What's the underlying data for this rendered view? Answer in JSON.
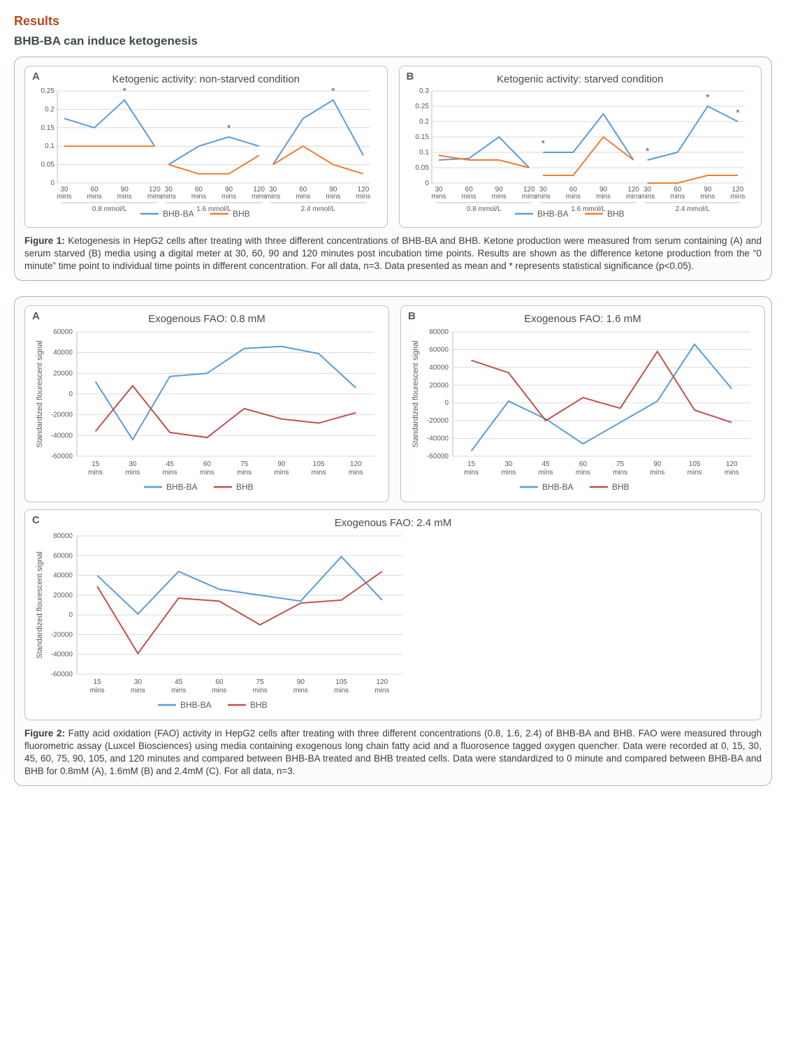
{
  "headings": {
    "results": "Results",
    "sub1": "BHB-BA can induce ketogenesis"
  },
  "colors": {
    "series_bhbba": "#5b9bd5",
    "series_bhb": "#ed7d31",
    "series_bhb_dark": "#c0504d",
    "grid": "#d9d9d9",
    "axis": "#bfbfbf",
    "text": "#595959",
    "box_border": "#a6b5bd"
  },
  "figure1": {
    "panelA": {
      "letter": "A",
      "title": "Ketogenic activity: non-starved condition",
      "ymin": 0,
      "ymax": 0.25,
      "ystep": 0.05,
      "groups": [
        "0.8 mmol/L",
        "1.6 mmol/L",
        "2.4  mmol/L"
      ],
      "x_labels": [
        "30",
        "60",
        "90",
        "120"
      ],
      "x_sub": "mins",
      "series": [
        {
          "name": "BHB-BA",
          "color": "#5b9bd5",
          "values": [
            [
              0.175,
              0.15,
              0.225,
              0.1
            ],
            [
              0.05,
              0.1,
              0.125,
              0.1
            ],
            [
              0.05,
              0.175,
              0.225,
              0.075
            ]
          ]
        },
        {
          "name": "BHB",
          "color": "#ed7d31",
          "values": [
            [
              0.1,
              0.1,
              0.1,
              0.1
            ],
            [
              0.05,
              0.025,
              0.025,
              0.075
            ],
            [
              0.05,
              0.1,
              0.05,
              0.025
            ]
          ]
        }
      ],
      "stars": [
        {
          "group": 0,
          "idx": 2
        },
        {
          "group": 1,
          "idx": 2
        },
        {
          "group": 2,
          "idx": 2
        }
      ]
    },
    "panelB": {
      "letter": "B",
      "title": "Ketogenic activity: starved condition",
      "ymin": 0,
      "ymax": 0.3,
      "ystep": 0.05,
      "groups": [
        "0.8 mmol/L",
        "1.6 mmol/L",
        "2.4  mmol/L"
      ],
      "x_labels": [
        "30",
        "60",
        "90",
        "120"
      ],
      "x_sub": "mins",
      "series": [
        {
          "name": "BHB-BA",
          "color": "#5b9bd5",
          "values": [
            [
              0.075,
              0.08,
              0.15,
              0.05
            ],
            [
              0.1,
              0.1,
              0.225,
              0.075
            ],
            [
              0.075,
              0.1,
              0.25,
              0.2
            ]
          ]
        },
        {
          "name": "BHB",
          "color": "#ed7d31",
          "values": [
            [
              0.09,
              0.075,
              0.075,
              0.05
            ],
            [
              0.025,
              0.025,
              0.15,
              0.075
            ],
            [
              0.0,
              0.0,
              0.025,
              0.025
            ]
          ]
        }
      ],
      "stars": [
        {
          "group": 1,
          "idx": 0
        },
        {
          "group": 2,
          "idx": 0
        },
        {
          "group": 2,
          "idx": 2
        },
        {
          "group": 2,
          "idx": 3
        }
      ]
    },
    "legend": [
      "BHB-BA",
      "BHB"
    ],
    "caption_label": "Figure 1:",
    "caption_text": " Ketogenesis in HepG2 cells after treating with three different concentrations of BHB-BA and BHB. Ketone production were measured from serum containing (A) and serum starved (B) media using a digital meter at 30, 60, 90 and 120 minutes post incubation time points. Results are shown as the difference ketone production from the “0 minute” time point to individual time points in different concentration. For all data, n=3. Data presented as mean and * represents statistical significance (p<0.05)."
  },
  "figure2": {
    "x_labels": [
      "15",
      "30",
      "45",
      "60",
      "75",
      "90",
      "105",
      "120"
    ],
    "x_sub": "mins",
    "ylabel": "Standardized flourescent signal",
    "legend": [
      "BHB-BA",
      "BHB"
    ],
    "panelA": {
      "letter": "A",
      "title": "Exogenous FAO: 0.8 mM",
      "ymin": -60000,
      "ymax": 60000,
      "ystep": 20000,
      "series": [
        {
          "name": "BHB-BA",
          "color": "#5b9bd5",
          "values": [
            12000,
            -44000,
            17000,
            20000,
            44000,
            46000,
            39000,
            6000
          ]
        },
        {
          "name": "BHB",
          "color": "#c0504d",
          "values": [
            -36000,
            8000,
            -37000,
            -42000,
            -14000,
            -24000,
            -28000,
            -18000
          ]
        }
      ]
    },
    "panelB": {
      "letter": "B",
      "title": "Exogenous FAO: 1.6 mM",
      "ymin": -60000,
      "ymax": 80000,
      "ystep": 20000,
      "series": [
        {
          "name": "BHB-BA",
          "color": "#5b9bd5",
          "values": [
            -54000,
            2000,
            -18000,
            -46000,
            -22000,
            2000,
            66000,
            16000
          ]
        },
        {
          "name": "BHB",
          "color": "#c0504d",
          "values": [
            48000,
            34000,
            -20000,
            6000,
            -6000,
            58000,
            -8000,
            -22000
          ]
        }
      ]
    },
    "panelC": {
      "letter": "C",
      "title": "Exogenous FAO: 2.4 mM",
      "ymin": -60000,
      "ymax": 80000,
      "ystep": 20000,
      "series": [
        {
          "name": "BHB-BA",
          "color": "#5b9bd5",
          "values": [
            40000,
            1000,
            44000,
            26000,
            20000,
            14000,
            59000,
            15000
          ]
        },
        {
          "name": "BHB",
          "color": "#c0504d",
          "values": [
            29000,
            -39000,
            17000,
            14000,
            -10000,
            12000,
            15000,
            44000
          ]
        }
      ]
    },
    "caption_label": "Figure 2:",
    "caption_text": " Fatty acid oxidation (FAO) activity in HepG2 cells after treating with three different concentrations (0.8, 1.6, 2.4) of BHB-BA and BHB. FAO were measured through fluorometric assay (Luxcel Biosciences) using media containing exogenous long chain fatty acid and a fluorosence tagged oxygen quencher. Data were recorded at 0, 15, 30, 45, 60, 75, 90, 105, and 120 minutes and compared between BHB-BA treated and BHB treated cells. Data were standardized to 0 minute and compared between BHB-BA and BHB for 0.8mM (A), 1.6mM (B) and 2.4mM (C). For all data, n=3."
  }
}
